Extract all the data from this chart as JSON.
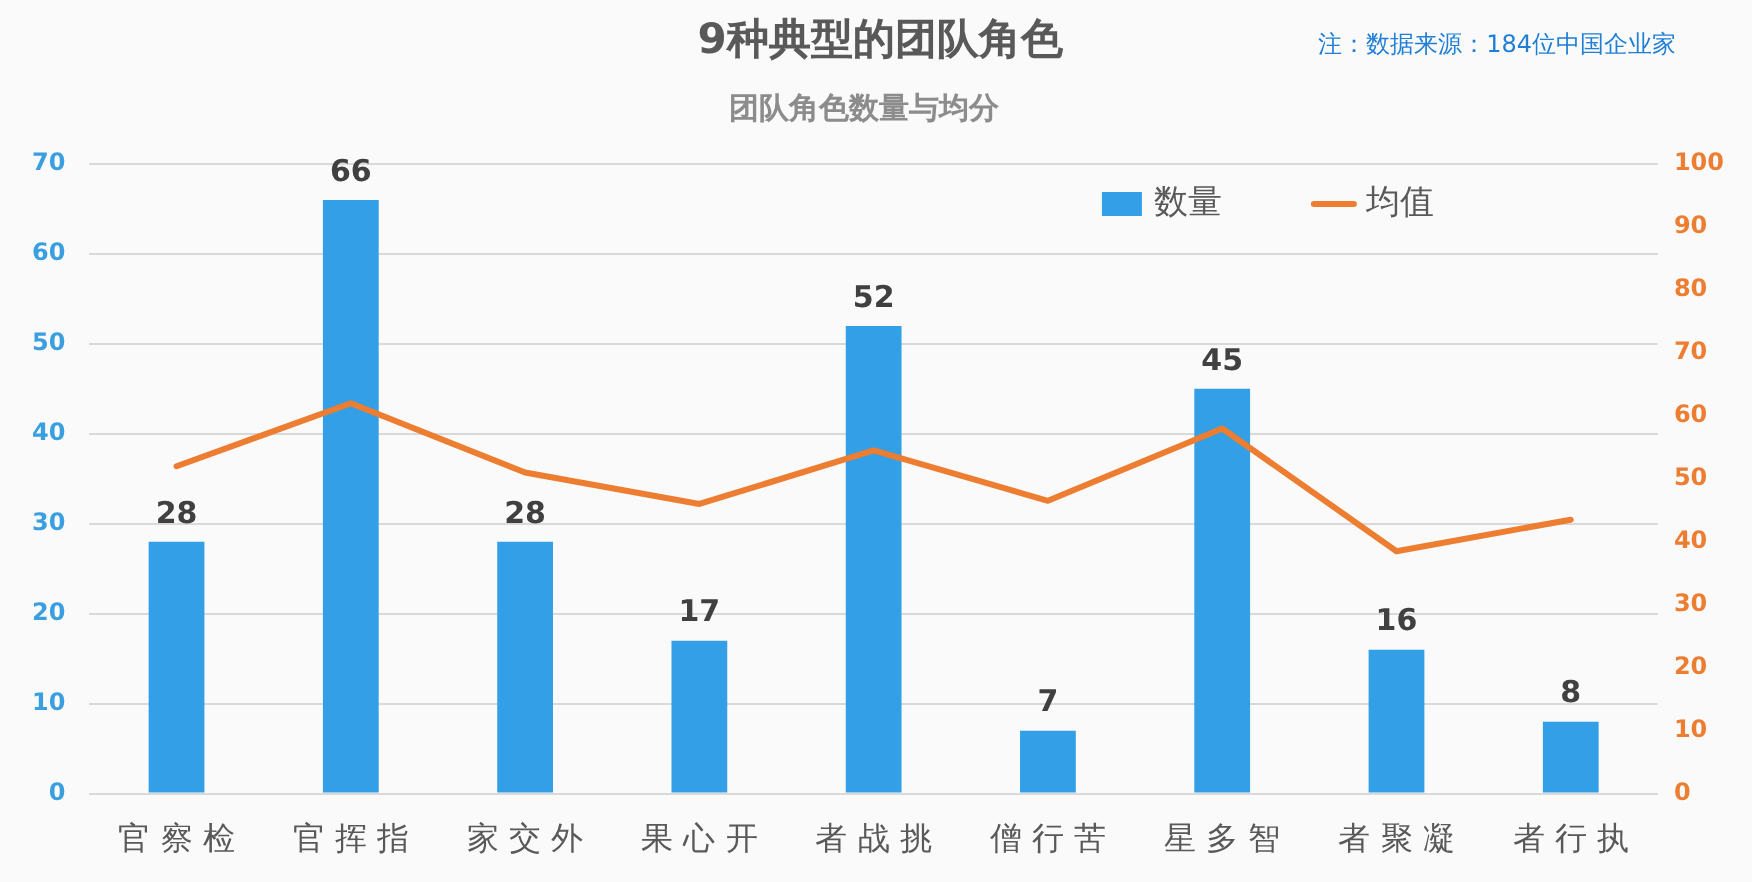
{
  "chart_data": {
    "type": "bar",
    "title": "9种典型的团队角色",
    "subtitle": "团队角色数量与均分",
    "annotations": [
      "注：数据来源：184位中国企业家"
    ],
    "categories": [
      "官 察 检",
      "官 挥 指",
      "家 交 外",
      "果 心 开",
      "者 战 挑",
      "僧 行 苦",
      "星 多 智",
      "者 聚 凝",
      "者 行 执"
    ],
    "series": [
      {
        "name": "数量",
        "color": "#339fe6",
        "values": [
          28,
          66,
          28,
          17,
          52,
          7,
          45,
          16,
          8
        ],
        "value_labels": [
          "28",
          "66",
          "28",
          "17",
          "52",
          "7",
          "45",
          "16",
          "8"
        ]
      },
      {
        "name": "均值",
        "type": "line",
        "axis": "y2",
        "color": "#ed7d31",
        "values": [
          52,
          62,
          51,
          46,
          54.5,
          46.5,
          58,
          38.5,
          43.5
        ]
      }
    ],
    "ylim": [
      0,
      70
    ],
    "yticks": [
      0,
      10,
      20,
      30,
      40,
      50,
      60,
      70
    ],
    "y2lim": [
      0,
      100
    ],
    "y2ticks": [
      0,
      10,
      20,
      30,
      40,
      50,
      60,
      70,
      80,
      90,
      100
    ],
    "grid": "y",
    "legend": "top right",
    "marker": "none",
    "line_style": "solid"
  }
}
